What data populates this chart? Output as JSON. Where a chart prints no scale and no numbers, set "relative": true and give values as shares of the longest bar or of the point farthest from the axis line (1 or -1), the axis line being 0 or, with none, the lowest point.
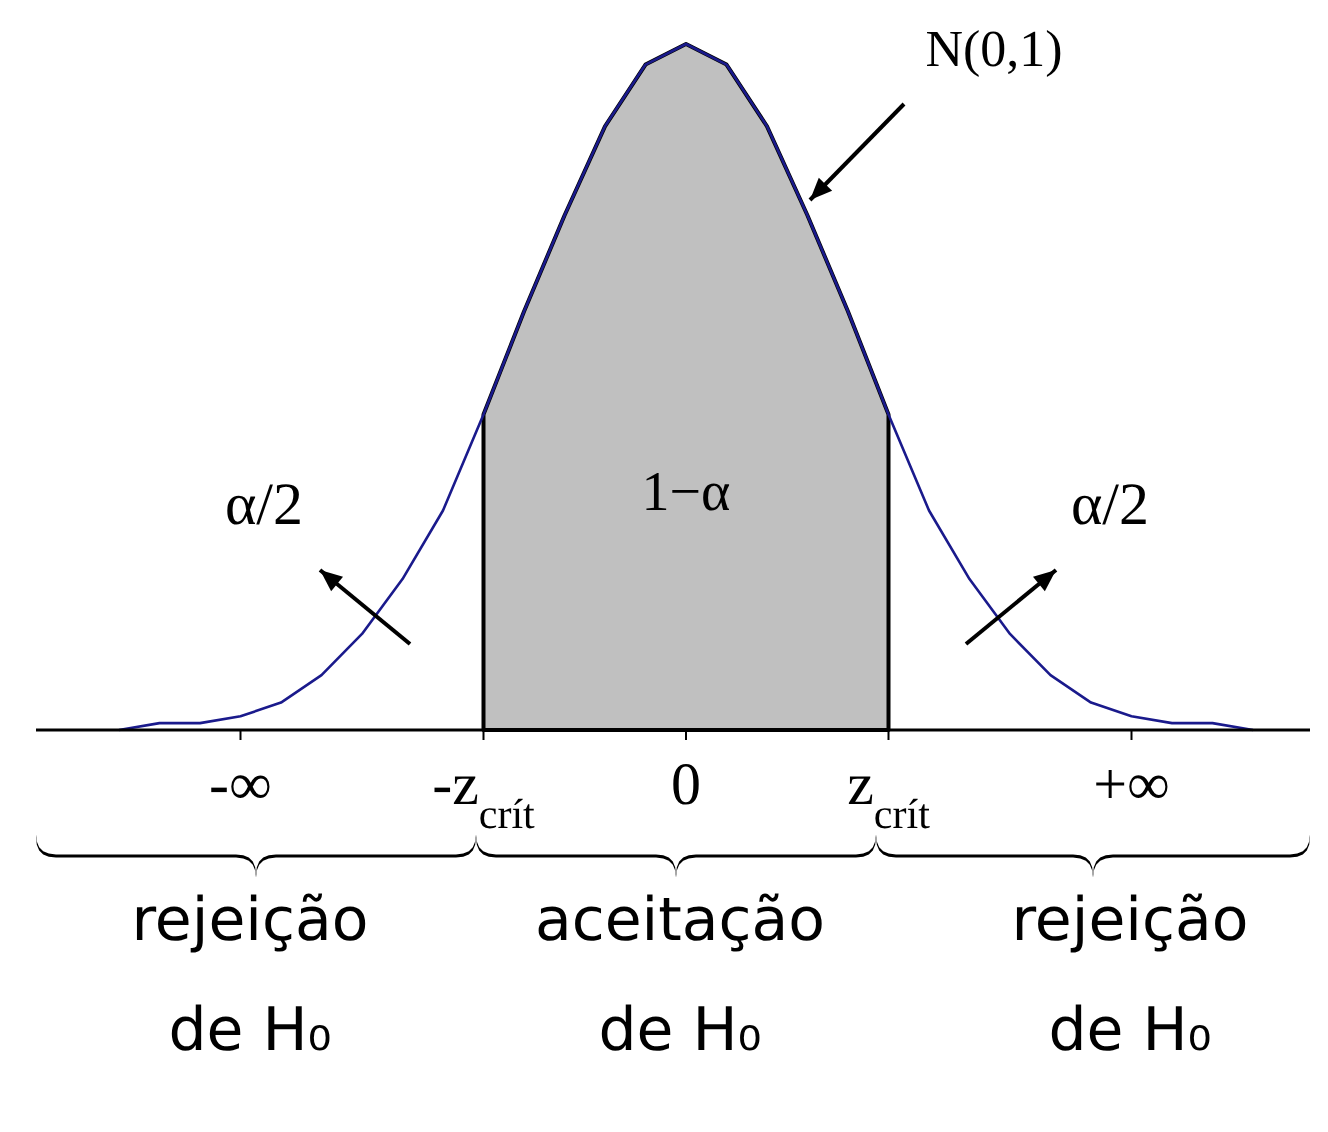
{
  "chart_data": {
    "type": "line",
    "relative": true,
    "marker": "none",
    "categories": [
      null,
      null,
      null,
      null,
      "-∞",
      null,
      null,
      null,
      null,
      null,
      "-z$_{crít}$",
      null,
      null,
      null,
      null,
      "0",
      null,
      null,
      null,
      null,
      "z$_{crít}$",
      null,
      null,
      null,
      null,
      null,
      "+∞",
      null,
      null,
      null,
      null
    ],
    "series": [
      {
        "type": "area",
        "color": "#c0c0c0",
        "values": [
          null,
          null,
          null,
          null,
          null,
          null,
          null,
          null,
          null,
          null,
          0.46,
          0.61,
          0.75,
          0.88,
          0.97,
          1,
          0.97,
          0.88,
          0.75,
          0.61,
          0.46,
          null,
          null,
          null,
          null,
          null,
          null,
          null,
          null,
          null,
          null
        ]
      },
      {
        "color": "#1a1a8c",
        "values": [
          null,
          0,
          0.01,
          0.01,
          0.02,
          0.04,
          0.08,
          0.14,
          0.22,
          0.32,
          0.46,
          0.61,
          0.75,
          0.88,
          0.97,
          1,
          0.97,
          0.88,
          0.75,
          0.61,
          0.46,
          0.32,
          0.22,
          0.14,
          0.08,
          0.04,
          0.02,
          0.01,
          0.01,
          0,
          null
        ]
      }
    ],
    "annotations": [
      "N(0,1)",
      "1−α",
      "α/2",
      "α/2",
      "rejeição de H₀",
      "aceitação de H₀",
      "rejeição de H₀"
    ]
  }
}
